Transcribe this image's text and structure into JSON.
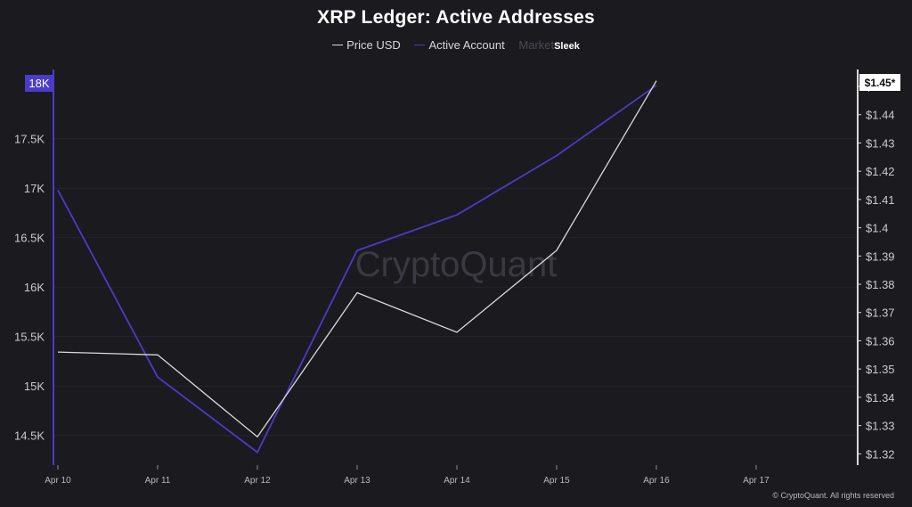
{
  "title": "XRP Ledger: Active Addresses",
  "legend": {
    "price": "Price USD",
    "active": "Active Account",
    "market": "Market",
    "sleek": "Sleek"
  },
  "watermark": "CryptoQuant",
  "footer": "© CryptoQuant. All rights reserved",
  "colors": {
    "background": "#1b1a1f",
    "active": "#4b3bc8",
    "price": "#d9d9de",
    "left_badge": "#4b3bc8",
    "right_badge": "#ffffff"
  },
  "chart_data": {
    "type": "line",
    "title": "XRP Ledger: Active Addresses",
    "x": [
      "Apr 10",
      "Apr 11",
      "Apr 12",
      "Apr 13",
      "Apr 14",
      "Apr 15",
      "Apr 16",
      "Apr 17"
    ],
    "series": [
      {
        "name": "Active Account",
        "axis": "left",
        "values": [
          16980,
          15090,
          14330,
          16370,
          16730,
          17330,
          18040,
          null
        ]
      },
      {
        "name": "Price USD",
        "axis": "right",
        "values": [
          1.356,
          1.355,
          1.326,
          1.377,
          1.363,
          1.392,
          1.452,
          null
        ]
      }
    ],
    "y_left": {
      "ticks": [
        "14.5K",
        "15K",
        "15.5K",
        "16K",
        "16.5K",
        "17K",
        "17.5K"
      ],
      "tick_values": [
        14500,
        15000,
        15500,
        16000,
        16500,
        17000,
        17500
      ],
      "range": [
        14200,
        18200
      ],
      "current_label": "18K"
    },
    "y_right": {
      "ticks": [
        "$1.32",
        "$1.33",
        "$1.34",
        "$1.35",
        "$1.36",
        "$1.37",
        "$1.38",
        "$1.39",
        "$1.4",
        "$1.41",
        "$1.42",
        "$1.43",
        "$1.44",
        "$1.45"
      ],
      "tick_values": [
        1.32,
        1.33,
        1.34,
        1.35,
        1.36,
        1.37,
        1.38,
        1.39,
        1.4,
        1.41,
        1.42,
        1.43,
        1.44,
        1.45
      ],
      "range": [
        1.316,
        1.456
      ],
      "current_label": "$1.45*"
    },
    "grid": true,
    "legend_position": "top-center"
  }
}
